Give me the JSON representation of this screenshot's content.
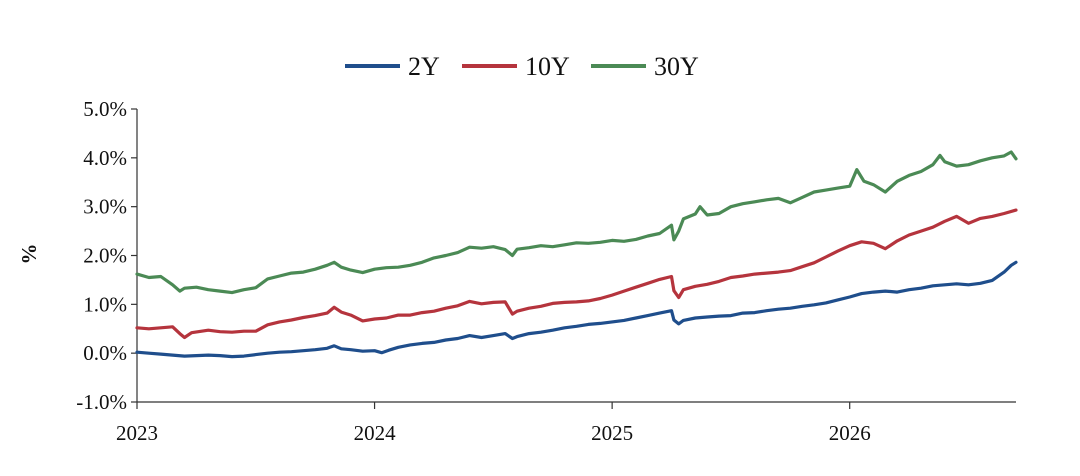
{
  "chart_data": {
    "type": "line",
    "title": "",
    "xlabel": "",
    "ylabel": "%",
    "ylim": [
      -1.0,
      5.0
    ],
    "yticks": [
      "-1.0%",
      "0.0%",
      "1.0%",
      "2.0%",
      "3.0%",
      "4.0%",
      "5.0%"
    ],
    "ytick_values": [
      -1,
      0,
      1,
      2,
      3,
      4,
      5
    ],
    "xlim": [
      2023.0,
      2026.7
    ],
    "xticks": [
      "2023",
      "2024",
      "2025",
      "2026"
    ],
    "xtick_values": [
      2023,
      2024,
      2025,
      2026
    ],
    "grid": false,
    "legend_placement": "top-center",
    "series": [
      {
        "name": "2Y",
        "color": "#1f4e8c",
        "points": [
          [
            2023.0,
            0.02
          ],
          [
            2023.05,
            0.0
          ],
          [
            2023.1,
            -0.02
          ],
          [
            2023.15,
            -0.04
          ],
          [
            2023.2,
            -0.06
          ],
          [
            2023.25,
            -0.05
          ],
          [
            2023.3,
            -0.04
          ],
          [
            2023.35,
            -0.05
          ],
          [
            2023.4,
            -0.07
          ],
          [
            2023.45,
            -0.06
          ],
          [
            2023.5,
            -0.03
          ],
          [
            2023.55,
            0.0
          ],
          [
            2023.6,
            0.02
          ],
          [
            2023.65,
            0.03
          ],
          [
            2023.7,
            0.05
          ],
          [
            2023.75,
            0.07
          ],
          [
            2023.8,
            0.1
          ],
          [
            2023.83,
            0.15
          ],
          [
            2023.86,
            0.09
          ],
          [
            2023.9,
            0.07
          ],
          [
            2023.95,
            0.04
          ],
          [
            2024.0,
            0.05
          ],
          [
            2024.03,
            0.01
          ],
          [
            2024.06,
            0.06
          ],
          [
            2024.1,
            0.12
          ],
          [
            2024.15,
            0.17
          ],
          [
            2024.2,
            0.2
          ],
          [
            2024.25,
            0.22
          ],
          [
            2024.3,
            0.27
          ],
          [
            2024.35,
            0.3
          ],
          [
            2024.4,
            0.36
          ],
          [
            2024.45,
            0.32
          ],
          [
            2024.5,
            0.36
          ],
          [
            2024.55,
            0.4
          ],
          [
            2024.58,
            0.3
          ],
          [
            2024.6,
            0.34
          ],
          [
            2024.65,
            0.4
          ],
          [
            2024.7,
            0.43
          ],
          [
            2024.75,
            0.47
          ],
          [
            2024.8,
            0.52
          ],
          [
            2024.85,
            0.55
          ],
          [
            2024.9,
            0.59
          ],
          [
            2024.95,
            0.61
          ],
          [
            2025.0,
            0.64
          ],
          [
            2025.05,
            0.67
          ],
          [
            2025.1,
            0.72
          ],
          [
            2025.15,
            0.77
          ],
          [
            2025.2,
            0.82
          ],
          [
            2025.25,
            0.87
          ],
          [
            2025.26,
            0.68
          ],
          [
            2025.28,
            0.6
          ],
          [
            2025.3,
            0.67
          ],
          [
            2025.35,
            0.72
          ],
          [
            2025.4,
            0.74
          ],
          [
            2025.45,
            0.76
          ],
          [
            2025.5,
            0.77
          ],
          [
            2025.55,
            0.82
          ],
          [
            2025.6,
            0.83
          ],
          [
            2025.65,
            0.87
          ],
          [
            2025.7,
            0.9
          ],
          [
            2025.75,
            0.92
          ],
          [
            2025.8,
            0.96
          ],
          [
            2025.85,
            0.99
          ],
          [
            2025.9,
            1.03
          ],
          [
            2025.95,
            1.09
          ],
          [
            2026.0,
            1.15
          ],
          [
            2026.05,
            1.22
          ],
          [
            2026.1,
            1.25
          ],
          [
            2026.15,
            1.27
          ],
          [
            2026.2,
            1.25
          ],
          [
            2026.25,
            1.3
          ],
          [
            2026.3,
            1.33
          ],
          [
            2026.35,
            1.38
          ],
          [
            2026.4,
            1.4
          ],
          [
            2026.45,
            1.42
          ],
          [
            2026.5,
            1.4
          ],
          [
            2026.55,
            1.43
          ],
          [
            2026.6,
            1.49
          ],
          [
            2026.65,
            1.66
          ],
          [
            2026.68,
            1.8
          ],
          [
            2026.7,
            1.86
          ]
        ]
      },
      {
        "name": "10Y",
        "color": "#b5343d",
        "points": [
          [
            2023.0,
            0.52
          ],
          [
            2023.05,
            0.5
          ],
          [
            2023.1,
            0.52
          ],
          [
            2023.15,
            0.54
          ],
          [
            2023.18,
            0.4
          ],
          [
            2023.2,
            0.32
          ],
          [
            2023.23,
            0.42
          ],
          [
            2023.3,
            0.47
          ],
          [
            2023.35,
            0.44
          ],
          [
            2023.4,
            0.43
          ],
          [
            2023.45,
            0.45
          ],
          [
            2023.5,
            0.45
          ],
          [
            2023.55,
            0.58
          ],
          [
            2023.6,
            0.64
          ],
          [
            2023.65,
            0.68
          ],
          [
            2023.7,
            0.73
          ],
          [
            2023.75,
            0.77
          ],
          [
            2023.8,
            0.82
          ],
          [
            2023.83,
            0.94
          ],
          [
            2023.86,
            0.84
          ],
          [
            2023.9,
            0.78
          ],
          [
            2023.95,
            0.66
          ],
          [
            2024.0,
            0.7
          ],
          [
            2024.05,
            0.72
          ],
          [
            2024.1,
            0.78
          ],
          [
            2024.15,
            0.78
          ],
          [
            2024.2,
            0.83
          ],
          [
            2024.25,
            0.86
          ],
          [
            2024.3,
            0.92
          ],
          [
            2024.35,
            0.97
          ],
          [
            2024.4,
            1.06
          ],
          [
            2024.45,
            1.01
          ],
          [
            2024.5,
            1.04
          ],
          [
            2024.55,
            1.05
          ],
          [
            2024.58,
            0.8
          ],
          [
            2024.6,
            0.86
          ],
          [
            2024.65,
            0.92
          ],
          [
            2024.7,
            0.96
          ],
          [
            2024.75,
            1.02
          ],
          [
            2024.8,
            1.04
          ],
          [
            2024.85,
            1.05
          ],
          [
            2024.9,
            1.07
          ],
          [
            2024.95,
            1.12
          ],
          [
            2025.0,
            1.19
          ],
          [
            2025.05,
            1.27
          ],
          [
            2025.1,
            1.35
          ],
          [
            2025.15,
            1.43
          ],
          [
            2025.2,
            1.51
          ],
          [
            2025.25,
            1.57
          ],
          [
            2025.26,
            1.28
          ],
          [
            2025.28,
            1.14
          ],
          [
            2025.3,
            1.3
          ],
          [
            2025.35,
            1.37
          ],
          [
            2025.4,
            1.41
          ],
          [
            2025.45,
            1.47
          ],
          [
            2025.5,
            1.55
          ],
          [
            2025.55,
            1.58
          ],
          [
            2025.6,
            1.62
          ],
          [
            2025.65,
            1.64
          ],
          [
            2025.7,
            1.66
          ],
          [
            2025.75,
            1.69
          ],
          [
            2025.8,
            1.77
          ],
          [
            2025.85,
            1.85
          ],
          [
            2025.9,
            1.97
          ],
          [
            2025.95,
            2.09
          ],
          [
            2026.0,
            2.2
          ],
          [
            2026.05,
            2.28
          ],
          [
            2026.1,
            2.25
          ],
          [
            2026.15,
            2.14
          ],
          [
            2026.2,
            2.3
          ],
          [
            2026.25,
            2.42
          ],
          [
            2026.3,
            2.5
          ],
          [
            2026.35,
            2.58
          ],
          [
            2026.4,
            2.7
          ],
          [
            2026.45,
            2.8
          ],
          [
            2026.5,
            2.66
          ],
          [
            2026.55,
            2.76
          ],
          [
            2026.6,
            2.8
          ],
          [
            2026.65,
            2.86
          ],
          [
            2026.7,
            2.93
          ]
        ]
      },
      {
        "name": "30Y",
        "color": "#4b8a55",
        "points": [
          [
            2023.0,
            1.62
          ],
          [
            2023.05,
            1.55
          ],
          [
            2023.1,
            1.57
          ],
          [
            2023.15,
            1.4
          ],
          [
            2023.18,
            1.27
          ],
          [
            2023.2,
            1.33
          ],
          [
            2023.25,
            1.35
          ],
          [
            2023.3,
            1.3
          ],
          [
            2023.35,
            1.27
          ],
          [
            2023.4,
            1.24
          ],
          [
            2023.45,
            1.3
          ],
          [
            2023.5,
            1.34
          ],
          [
            2023.55,
            1.52
          ],
          [
            2023.6,
            1.58
          ],
          [
            2023.65,
            1.64
          ],
          [
            2023.7,
            1.66
          ],
          [
            2023.75,
            1.72
          ],
          [
            2023.8,
            1.8
          ],
          [
            2023.83,
            1.86
          ],
          [
            2023.86,
            1.76
          ],
          [
            2023.9,
            1.7
          ],
          [
            2023.95,
            1.65
          ],
          [
            2024.0,
            1.72
          ],
          [
            2024.05,
            1.75
          ],
          [
            2024.1,
            1.76
          ],
          [
            2024.15,
            1.8
          ],
          [
            2024.2,
            1.86
          ],
          [
            2024.25,
            1.95
          ],
          [
            2024.3,
            2.0
          ],
          [
            2024.35,
            2.06
          ],
          [
            2024.4,
            2.17
          ],
          [
            2024.45,
            2.15
          ],
          [
            2024.5,
            2.18
          ],
          [
            2024.55,
            2.12
          ],
          [
            2024.58,
            2.0
          ],
          [
            2024.6,
            2.13
          ],
          [
            2024.65,
            2.16
          ],
          [
            2024.7,
            2.2
          ],
          [
            2024.75,
            2.18
          ],
          [
            2024.8,
            2.22
          ],
          [
            2024.85,
            2.26
          ],
          [
            2024.9,
            2.25
          ],
          [
            2024.95,
            2.27
          ],
          [
            2025.0,
            2.31
          ],
          [
            2025.05,
            2.29
          ],
          [
            2025.1,
            2.33
          ],
          [
            2025.15,
            2.4
          ],
          [
            2025.2,
            2.45
          ],
          [
            2025.25,
            2.62
          ],
          [
            2025.26,
            2.32
          ],
          [
            2025.28,
            2.5
          ],
          [
            2025.3,
            2.75
          ],
          [
            2025.35,
            2.85
          ],
          [
            2025.37,
            3.0
          ],
          [
            2025.4,
            2.83
          ],
          [
            2025.45,
            2.86
          ],
          [
            2025.5,
            3.0
          ],
          [
            2025.55,
            3.06
          ],
          [
            2025.6,
            3.1
          ],
          [
            2025.65,
            3.14
          ],
          [
            2025.7,
            3.17
          ],
          [
            2025.75,
            3.08
          ],
          [
            2025.8,
            3.19
          ],
          [
            2025.85,
            3.3
          ],
          [
            2025.9,
            3.34
          ],
          [
            2025.95,
            3.38
          ],
          [
            2026.0,
            3.42
          ],
          [
            2026.03,
            3.76
          ],
          [
            2026.06,
            3.52
          ],
          [
            2026.1,
            3.45
          ],
          [
            2026.15,
            3.3
          ],
          [
            2026.2,
            3.52
          ],
          [
            2026.25,
            3.64
          ],
          [
            2026.3,
            3.72
          ],
          [
            2026.35,
            3.86
          ],
          [
            2026.38,
            4.05
          ],
          [
            2026.4,
            3.92
          ],
          [
            2026.45,
            3.83
          ],
          [
            2026.5,
            3.86
          ],
          [
            2026.55,
            3.94
          ],
          [
            2026.6,
            4.0
          ],
          [
            2026.65,
            4.04
          ],
          [
            2026.68,
            4.12
          ],
          [
            2026.7,
            3.98
          ]
        ]
      }
    ]
  }
}
